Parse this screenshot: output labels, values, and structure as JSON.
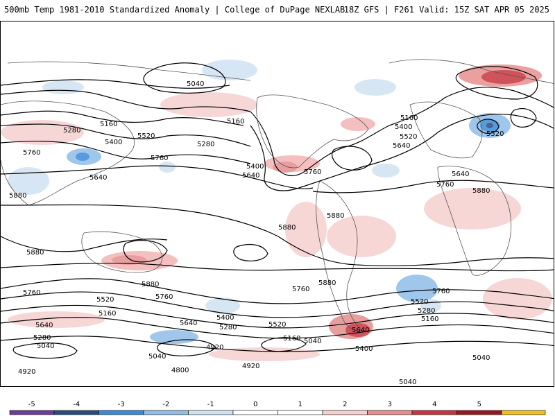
{
  "header": {
    "title_left": "500mb Temp 1981-2010 Standardized Anomaly | College of DuPage NEXLAB",
    "title_right": "18Z GFS | F261 Valid: 15Z SAT APR 05 2025"
  },
  "contour_labels": [
    "5040",
    "5160",
    "5280",
    "5400",
    "5520",
    "5640",
    "5760",
    "5880",
    "4920",
    "4800"
  ],
  "colorbar": {
    "ticks": [
      "-5",
      "-4",
      "-3",
      "-2",
      "-1",
      "0",
      "1",
      "2",
      "3",
      "4",
      "5"
    ],
    "colors": [
      "#6a3d9a",
      "#2c4a7a",
      "#3a8ad6",
      "#8fbde8",
      "#d0e2f2",
      "#ffffff",
      "#ffffff",
      "#f6cfcf",
      "#e48e8e",
      "#c8343e",
      "#9a1722",
      "#f2c018"
    ]
  }
}
